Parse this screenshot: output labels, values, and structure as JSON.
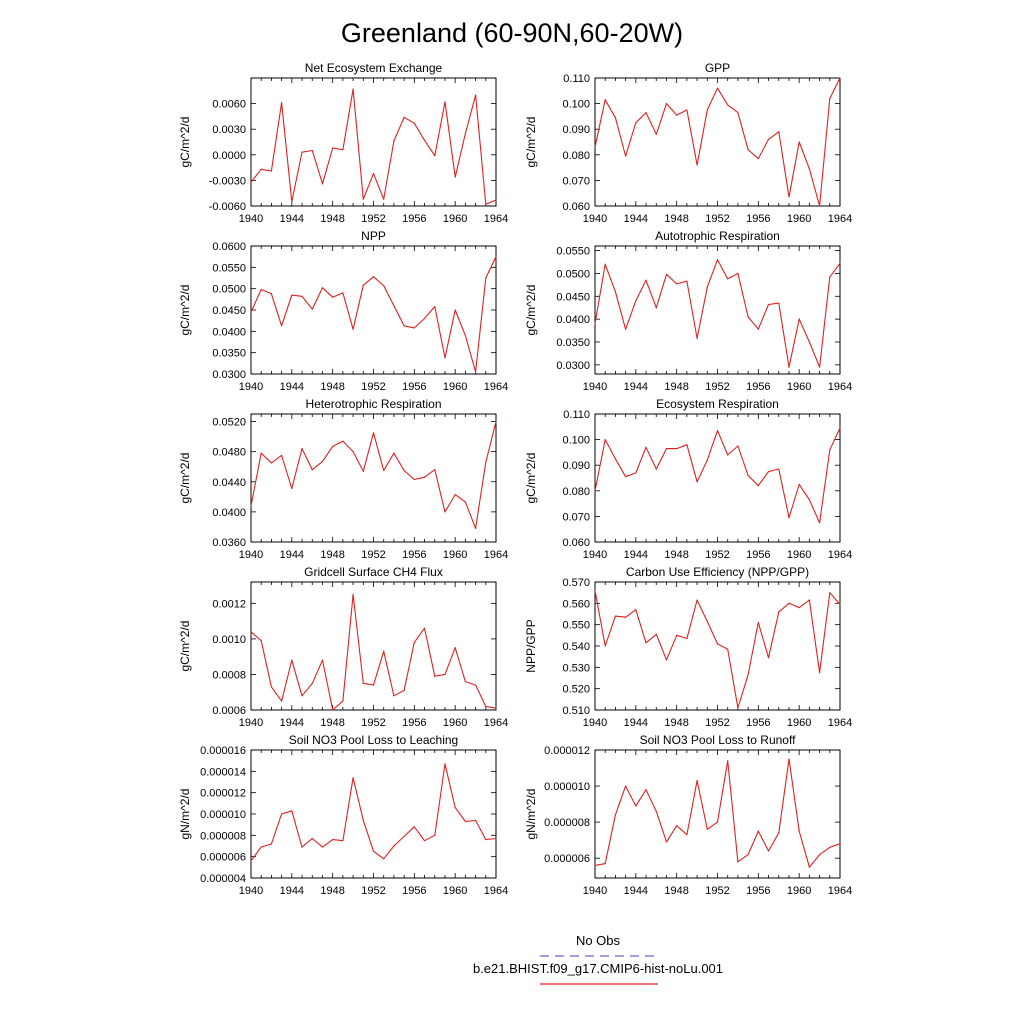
{
  "main_title": "Greenland (60-90N,60-20W)",
  "legend": {
    "entries": [
      {
        "label": "No Obs",
        "color": "#6666cc",
        "dash": true
      },
      {
        "label": "b.e21.BHIST.f09_g17.CMIP6-hist-noLu.001",
        "color": "#e02020",
        "dash": false
      }
    ]
  },
  "chart_data": [
    {
      "type": "line",
      "title": "Net Ecosystem Exchange",
      "xlabel": "",
      "ylabel": "gC/m^2/d",
      "xlim": [
        1940,
        1964
      ],
      "ylim": [
        -0.006,
        0.009
      ],
      "xticks": [
        "1940",
        "1944",
        "1948",
        "1952",
        "1956",
        "1960",
        "1964"
      ],
      "yticks": [
        "-0.0060",
        "-0.0030",
        "0.0000",
        "0.0030",
        "0.0060"
      ],
      "x": [
        1940,
        1941,
        1942,
        1943,
        1944,
        1945,
        1946,
        1947,
        1948,
        1949,
        1950,
        1951,
        1952,
        1953,
        1954,
        1955,
        1956,
        1957,
        1958,
        1959,
        1960,
        1961,
        1962,
        1963,
        1964
      ],
      "series": [
        {
          "color": "#e02020",
          "values": [
            -0.0032,
            -0.0017,
            -0.0019,
            0.0061,
            -0.0055,
            0.0003,
            0.0005,
            -0.0034,
            0.0008,
            0.0006,
            0.0077,
            -0.0052,
            -0.0022,
            -0.0052,
            0.0016,
            0.0044,
            0.0037,
            0.0017,
            -0.0001,
            0.0062,
            -0.0026,
            0.0025,
            0.007,
            -0.0058,
            -0.0053
          ]
        }
      ]
    },
    {
      "type": "line",
      "title": "GPP",
      "xlabel": "",
      "ylabel": "gC/m^2/d",
      "xlim": [
        1940,
        1964
      ],
      "ylim": [
        0.06,
        0.11
      ],
      "xticks": [
        "1940",
        "1944",
        "1948",
        "1952",
        "1956",
        "1960",
        "1964"
      ],
      "yticks": [
        "0.060",
        "0.070",
        "0.080",
        "0.090",
        "0.100",
        "0.110"
      ],
      "x": [
        1940,
        1941,
        1942,
        1943,
        1944,
        1945,
        1946,
        1947,
        1948,
        1949,
        1950,
        1951,
        1952,
        1953,
        1954,
        1955,
        1956,
        1957,
        1958,
        1959,
        1960,
        1961,
        1962,
        1963,
        1964
      ],
      "series": [
        {
          "color": "#e02020",
          "values": [
            0.083,
            0.1015,
            0.0945,
            0.0795,
            0.0925,
            0.0965,
            0.088,
            0.1,
            0.0955,
            0.0975,
            0.076,
            0.0975,
            0.106,
            0.0995,
            0.0965,
            0.082,
            0.0785,
            0.086,
            0.089,
            0.0635,
            0.085,
            0.0745,
            0.06,
            0.102,
            0.11
          ]
        }
      ]
    },
    {
      "type": "line",
      "title": "NPP",
      "xlabel": "",
      "ylabel": "gC/m^2/d",
      "xlim": [
        1940,
        1964
      ],
      "ylim": [
        0.03,
        0.06
      ],
      "xticks": [
        "1940",
        "1944",
        "1948",
        "1952",
        "1956",
        "1960",
        "1964"
      ],
      "yticks": [
        "0.0300",
        "0.0350",
        "0.0400",
        "0.0450",
        "0.0500",
        "0.0550",
        "0.0600"
      ],
      "x": [
        1940,
        1941,
        1942,
        1943,
        1944,
        1945,
        1946,
        1947,
        1948,
        1949,
        1950,
        1951,
        1952,
        1953,
        1954,
        1955,
        1956,
        1957,
        1958,
        1959,
        1960,
        1961,
        1962,
        1963,
        1964
      ],
      "series": [
        {
          "color": "#e02020",
          "values": [
            0.0445,
            0.0498,
            0.0488,
            0.0413,
            0.0485,
            0.0482,
            0.0452,
            0.0502,
            0.048,
            0.049,
            0.0405,
            0.0508,
            0.0528,
            0.0507,
            0.046,
            0.0413,
            0.0408,
            0.043,
            0.0458,
            0.0338,
            0.045,
            0.039,
            0.0305,
            0.0525,
            0.0575
          ]
        }
      ]
    },
    {
      "type": "line",
      "title": "Autotrophic Respiration",
      "xlabel": "",
      "ylabel": "gC/m^2/d",
      "xlim": [
        1940,
        1964
      ],
      "ylim": [
        0.028,
        0.056
      ],
      "xticks": [
        "1940",
        "1944",
        "1948",
        "1952",
        "1956",
        "1960",
        "1964"
      ],
      "yticks": [
        "0.0300",
        "0.0350",
        "0.0400",
        "0.0450",
        "0.0500",
        "0.0550"
      ],
      "x": [
        1940,
        1941,
        1942,
        1943,
        1944,
        1945,
        1946,
        1947,
        1948,
        1949,
        1950,
        1951,
        1952,
        1953,
        1954,
        1955,
        1956,
        1957,
        1958,
        1959,
        1960,
        1961,
        1962,
        1963,
        1964
      ],
      "series": [
        {
          "color": "#e02020",
          "values": [
            0.039,
            0.052,
            0.046,
            0.0378,
            0.044,
            0.0485,
            0.0425,
            0.0498,
            0.0477,
            0.0483,
            0.0358,
            0.047,
            0.053,
            0.0488,
            0.05,
            0.0405,
            0.0378,
            0.0432,
            0.0435,
            0.0295,
            0.04,
            0.035,
            0.0295,
            0.0492,
            0.0522
          ]
        }
      ]
    },
    {
      "type": "line",
      "title": "Heterotrophic Respiration",
      "xlabel": "",
      "ylabel": "gC/m^2/d",
      "xlim": [
        1940,
        1964
      ],
      "ylim": [
        0.036,
        0.053
      ],
      "xticks": [
        "1940",
        "1944",
        "1948",
        "1952",
        "1956",
        "1960",
        "1964"
      ],
      "yticks": [
        "0.0360",
        "0.0400",
        "0.0440",
        "0.0480",
        "0.0520"
      ],
      "x": [
        1940,
        1941,
        1942,
        1943,
        1944,
        1945,
        1946,
        1947,
        1948,
        1949,
        1950,
        1951,
        1952,
        1953,
        1954,
        1955,
        1956,
        1957,
        1958,
        1959,
        1960,
        1961,
        1962,
        1963,
        1964
      ],
      "series": [
        {
          "color": "#e02020",
          "values": [
            0.0408,
            0.0478,
            0.0465,
            0.0475,
            0.0431,
            0.0484,
            0.0456,
            0.0467,
            0.0487,
            0.0494,
            0.048,
            0.0454,
            0.0505,
            0.0455,
            0.0478,
            0.0455,
            0.0443,
            0.0446,
            0.0456,
            0.04,
            0.0423,
            0.0413,
            0.0378,
            0.0466,
            0.052
          ]
        }
      ]
    },
    {
      "type": "line",
      "title": "Ecosystem Respiration",
      "xlabel": "",
      "ylabel": "gC/m^2/d",
      "xlim": [
        1940,
        1964
      ],
      "ylim": [
        0.06,
        0.11
      ],
      "xticks": [
        "1940",
        "1944",
        "1948",
        "1952",
        "1956",
        "1960",
        "1964"
      ],
      "yticks": [
        "0.060",
        "0.070",
        "0.080",
        "0.090",
        "0.100",
        "0.110"
      ],
      "x": [
        1940,
        1941,
        1942,
        1943,
        1944,
        1945,
        1946,
        1947,
        1948,
        1949,
        1950,
        1951,
        1952,
        1953,
        1954,
        1955,
        1956,
        1957,
        1958,
        1959,
        1960,
        1961,
        1962,
        1963,
        1964
      ],
      "series": [
        {
          "color": "#e02020",
          "values": [
            0.08,
            0.1,
            0.0925,
            0.0855,
            0.087,
            0.097,
            0.0885,
            0.0965,
            0.0965,
            0.098,
            0.0835,
            0.092,
            0.1035,
            0.094,
            0.0975,
            0.086,
            0.082,
            0.0875,
            0.0885,
            0.0695,
            0.0825,
            0.0765,
            0.0675,
            0.096,
            0.1045
          ]
        }
      ]
    },
    {
      "type": "line",
      "title": "Gridcell Surface CH4 Flux",
      "xlabel": "",
      "ylabel": "gC/m^2/d",
      "xlim": [
        1940,
        1964
      ],
      "ylim": [
        0.0006,
        0.00132
      ],
      "xticks": [
        "1940",
        "1944",
        "1948",
        "1952",
        "1956",
        "1960",
        "1964"
      ],
      "yticks": [
        "0.0006",
        "0.0008",
        "0.0010",
        "0.0012"
      ],
      "x": [
        1940,
        1941,
        1942,
        1943,
        1944,
        1945,
        1946,
        1947,
        1948,
        1949,
        1950,
        1951,
        1952,
        1953,
        1954,
        1955,
        1956,
        1957,
        1958,
        1959,
        1960,
        1961,
        1962,
        1963,
        1964
      ],
      "series": [
        {
          "color": "#e02020",
          "values": [
            0.00104,
            0.00099,
            0.00073,
            0.00065,
            0.00088,
            0.00068,
            0.00075,
            0.00088,
            0.0006,
            0.00065,
            0.00125,
            0.00075,
            0.00074,
            0.00093,
            0.00068,
            0.00071,
            0.00098,
            0.00106,
            0.00079,
            0.0008,
            0.00095,
            0.00076,
            0.00074,
            0.00062,
            0.00061
          ]
        }
      ]
    },
    {
      "type": "line",
      "title": "Carbon Use Efficiency (NPP/GPP)",
      "xlabel": "",
      "ylabel": "NPP/GPP",
      "xlim": [
        1940,
        1964
      ],
      "ylim": [
        0.51,
        0.57
      ],
      "xticks": [
        "1940",
        "1944",
        "1948",
        "1952",
        "1956",
        "1960",
        "1964"
      ],
      "yticks": [
        "0.510",
        "0.520",
        "0.530",
        "0.540",
        "0.550",
        "0.560",
        "0.570"
      ],
      "x": [
        1940,
        1941,
        1942,
        1943,
        1944,
        1945,
        1946,
        1947,
        1948,
        1949,
        1950,
        1951,
        1952,
        1953,
        1954,
        1955,
        1956,
        1957,
        1958,
        1959,
        1960,
        1961,
        1962,
        1963,
        1964
      ],
      "series": [
        {
          "color": "#e02020",
          "values": [
            0.566,
            0.54,
            0.554,
            0.5535,
            0.557,
            0.5415,
            0.5455,
            0.5335,
            0.545,
            0.5435,
            0.5615,
            0.5515,
            0.541,
            0.5385,
            0.511,
            0.5265,
            0.551,
            0.5345,
            0.556,
            0.56,
            0.558,
            0.5615,
            0.5275,
            0.565,
            0.5595
          ]
        }
      ]
    },
    {
      "type": "line",
      "title": "Soil NO3 Pool Loss to Leaching",
      "xlabel": "",
      "ylabel": "gN/m^2/d",
      "xlim": [
        1940,
        1964
      ],
      "ylim": [
        4e-06,
        1.6e-05
      ],
      "xticks": [
        "1940",
        "1944",
        "1948",
        "1952",
        "1956",
        "1960",
        "1964"
      ],
      "yticks": [
        "0.000004",
        "0.000006",
        "0.000008",
        "0.000010",
        "0.000012",
        "0.000014",
        "0.000016"
      ],
      "x": [
        1940,
        1941,
        1942,
        1943,
        1944,
        1945,
        1946,
        1947,
        1948,
        1949,
        1950,
        1951,
        1952,
        1953,
        1954,
        1955,
        1956,
        1957,
        1958,
        1959,
        1960,
        1961,
        1962,
        1963,
        1964
      ],
      "series": [
        {
          "color": "#e02020",
          "values": [
            5.6e-06,
            6.9e-06,
            7.2e-06,
            1e-05,
            1.03e-05,
            6.9e-06,
            7.7e-06,
            6.9e-06,
            7.6e-06,
            7.5e-06,
            1.34e-05,
            9.4e-06,
            6.5e-06,
            5.8e-06,
            7e-06,
            7.9e-06,
            8.8e-06,
            7.5e-06,
            8e-06,
            1.47e-05,
            1.06e-05,
            9.3e-06,
            9.4e-06,
            7.6e-06,
            7.7e-06
          ]
        }
      ]
    },
    {
      "type": "line",
      "title": "Soil NO3 Pool Loss to Runoff",
      "xlabel": "",
      "ylabel": "gN/m^2/d",
      "xlim": [
        1940,
        1964
      ],
      "ylim": [
        4.9e-06,
        1.2e-05
      ],
      "xticks": [
        "1940",
        "1944",
        "1948",
        "1952",
        "1956",
        "1960",
        "1964"
      ],
      "yticks": [
        "0.000006",
        "0.000008",
        "0.000010",
        "0.000012"
      ],
      "x": [
        1940,
        1941,
        1942,
        1943,
        1944,
        1945,
        1946,
        1947,
        1948,
        1949,
        1950,
        1951,
        1952,
        1953,
        1954,
        1955,
        1956,
        1957,
        1958,
        1959,
        1960,
        1961,
        1962,
        1963,
        1964
      ],
      "series": [
        {
          "color": "#e02020",
          "values": [
            5.6e-06,
            5.7e-06,
            8.4e-06,
            1e-05,
            8.9e-06,
            9.8e-06,
            8.6e-06,
            6.9e-06,
            7.8e-06,
            7.3e-06,
            1.03e-05,
            7.6e-06,
            8e-06,
            1.14e-05,
            5.8e-06,
            6.2e-06,
            7.5e-06,
            6.4e-06,
            7.4e-06,
            1.15e-05,
            7.5e-06,
            5.5e-06,
            6.2e-06,
            6.6e-06,
            6.8e-06
          ]
        }
      ]
    }
  ]
}
